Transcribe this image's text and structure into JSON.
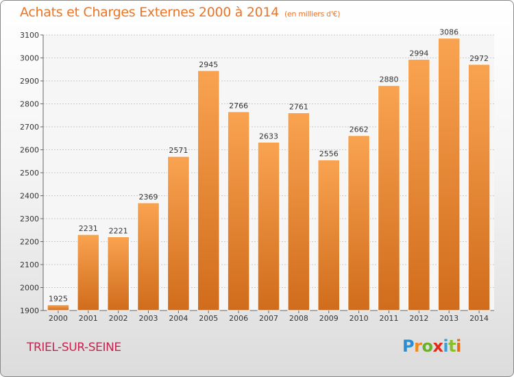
{
  "title": "Achats et Charges Externes 2000 à 2014",
  "subtitle": "(en milliers d'€)",
  "place": "TRIEL-SUR-SEINE",
  "logo": {
    "letters": [
      "P",
      "r",
      "o",
      "x",
      "i",
      "t",
      "i"
    ],
    "colors": [
      "#2a8fd0",
      "#f08a1c",
      "#6ab02a",
      "#e4281c",
      "#3a9fd8",
      "#8bbd2a",
      "#e06c1a"
    ]
  },
  "colors": {
    "title": "#ec7426",
    "place": "#c8224e",
    "bar_top": "#f9a350",
    "bar_bottom": "#d06c1c",
    "grid": "#c8c8c8"
  },
  "chart_data": {
    "type": "bar",
    "categories": [
      "2000",
      "2001",
      "2002",
      "2003",
      "2004",
      "2005",
      "2006",
      "2007",
      "2008",
      "2009",
      "2010",
      "2011",
      "2012",
      "2013",
      "2014"
    ],
    "values": [
      1925,
      2231,
      2221,
      2369,
      2571,
      2945,
      2766,
      2633,
      2761,
      2556,
      2662,
      2880,
      2994,
      3086,
      2972
    ],
    "ylim": [
      1900,
      3100
    ],
    "yticks": [
      1900,
      2000,
      2100,
      2200,
      2300,
      2400,
      2500,
      2600,
      2700,
      2800,
      2900,
      3000,
      3100
    ],
    "grid": true,
    "xlabel": "",
    "ylabel": ""
  }
}
